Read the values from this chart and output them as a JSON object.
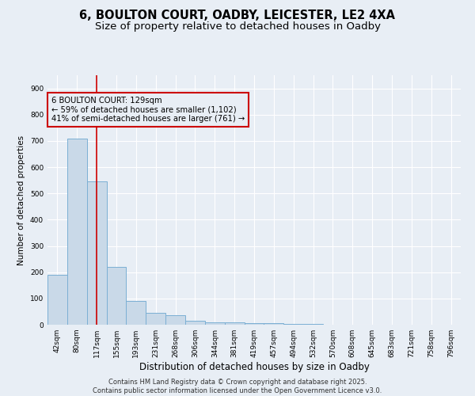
{
  "title_line1": "6, BOULTON COURT, OADBY, LEICESTER, LE2 4XA",
  "title_line2": "Size of property relative to detached houses in Oadby",
  "xlabel": "Distribution of detached houses by size in Oadby",
  "ylabel": "Number of detached properties",
  "bin_labels": [
    "42sqm",
    "80sqm",
    "117sqm",
    "155sqm",
    "193sqm",
    "231sqm",
    "268sqm",
    "306sqm",
    "344sqm",
    "381sqm",
    "419sqm",
    "457sqm",
    "494sqm",
    "532sqm",
    "570sqm",
    "608sqm",
    "645sqm",
    "683sqm",
    "721sqm",
    "758sqm",
    "796sqm"
  ],
  "bar_values": [
    190,
    710,
    545,
    220,
    90,
    45,
    35,
    15,
    10,
    10,
    5,
    5,
    2,
    2,
    1,
    0,
    0,
    0,
    1,
    0,
    0
  ],
  "bar_color": "#c9d9e8",
  "bar_edgecolor": "#7bafd4",
  "vline_x": 2.0,
  "vline_color": "#cc0000",
  "annotation_text": "6 BOULTON COURT: 129sqm\n← 59% of detached houses are smaller (1,102)\n41% of semi-detached houses are larger (761) →",
  "box_edgecolor": "#cc0000",
  "ylim": [
    0,
    950
  ],
  "yticks": [
    0,
    100,
    200,
    300,
    400,
    500,
    600,
    700,
    800,
    900
  ],
  "background_color": "#e8eef5",
  "plot_bg_color": "#e8eef5",
  "footer_line1": "Contains HM Land Registry data © Crown copyright and database right 2025.",
  "footer_line2": "Contains public sector information licensed under the Open Government Licence v3.0.",
  "title_fontsize": 10.5,
  "subtitle_fontsize": 9.5,
  "annotation_fontsize": 7.2,
  "tick_fontsize": 6.5,
  "xlabel_fontsize": 8.5,
  "ylabel_fontsize": 7.5,
  "footer_fontsize": 6.0
}
